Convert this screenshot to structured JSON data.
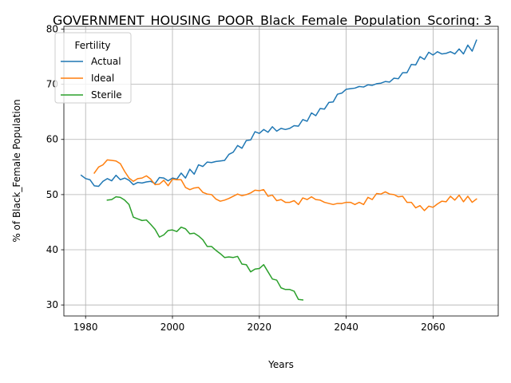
{
  "chart_data": {
    "type": "line",
    "title": "GOVERNMENT_HOUSING_POOR_Black_Female_Population_Scoring: 3",
    "xlabel": "Years",
    "ylabel": "% of Black_Female Population",
    "xlim": [
      1975,
      2075
    ],
    "ylim": [
      28,
      80.5
    ],
    "xticks": [
      1980,
      2000,
      2020,
      2040,
      2060
    ],
    "yticks": [
      30,
      40,
      50,
      60,
      70,
      80
    ],
    "grid": true,
    "legend": {
      "title": "Fertility",
      "placement": "top-left"
    },
    "series": [
      {
        "name": "Actual",
        "color": "#1f77b4",
        "x": [
          1979,
          1980,
          1981,
          1982,
          1983,
          1984,
          1985,
          1986,
          1987,
          1988,
          1989,
          1990,
          1991,
          1992,
          1993,
          1994,
          1995,
          1996,
          1997,
          1998,
          1999,
          2000,
          2001,
          2002,
          2003,
          2004,
          2005,
          2006,
          2007,
          2008,
          2009,
          2010,
          2011,
          2012,
          2013,
          2014,
          2015,
          2016,
          2017,
          2018,
          2019,
          2020,
          2021,
          2022,
          2023,
          2024,
          2025,
          2026,
          2027,
          2028,
          2029,
          2030,
          2031,
          2032,
          2033,
          2034,
          2035,
          2036,
          2037,
          2038,
          2039,
          2040,
          2041,
          2042,
          2043,
          2044,
          2045,
          2046,
          2047,
          2048,
          2049,
          2050,
          2051,
          2052,
          2053,
          2054,
          2055,
          2056,
          2057,
          2058,
          2059,
          2060,
          2061,
          2062,
          2063,
          2064,
          2065,
          2066,
          2067,
          2068,
          2069,
          2070
        ],
        "values": [
          53.5,
          52.9,
          52.7,
          51.6,
          51.5,
          52.4,
          52.9,
          52.5,
          53.5,
          52.7,
          53.0,
          52.6,
          51.8,
          52.2,
          52.1,
          52.3,
          52.4,
          52.0,
          53.1,
          53.0,
          52.5,
          53.0,
          52.8,
          53.9,
          53.0,
          54.6,
          53.7,
          55.4,
          55.1,
          55.9,
          55.8,
          56.0,
          56.1,
          56.2,
          57.3,
          57.7,
          58.9,
          58.4,
          59.8,
          59.9,
          61.4,
          61.1,
          61.8,
          61.3,
          62.3,
          61.5,
          62.0,
          61.8,
          62.0,
          62.5,
          62.4,
          63.6,
          63.3,
          64.8,
          64.3,
          65.6,
          65.5,
          66.7,
          66.8,
          68.2,
          68.4,
          69.1,
          69.2,
          69.3,
          69.6,
          69.5,
          69.9,
          69.8,
          70.1,
          70.2,
          70.5,
          70.4,
          71.1,
          71.0,
          72.1,
          72.1,
          73.6,
          73.5,
          75.0,
          74.5,
          75.8,
          75.3,
          75.9,
          75.5,
          75.6,
          75.9,
          75.5,
          76.4,
          75.5,
          77.1,
          76.0,
          78.0
        ]
      },
      {
        "name": "Ideal",
        "color": "#ff7f0e",
        "x": [
          1982,
          1983,
          1984,
          1985,
          1986,
          1987,
          1988,
          1989,
          1990,
          1991,
          1992,
          1993,
          1994,
          1995,
          1996,
          1997,
          1998,
          1999,
          2000,
          2001,
          2002,
          2003,
          2004,
          2005,
          2006,
          2007,
          2008,
          2009,
          2010,
          2011,
          2012,
          2013,
          2014,
          2015,
          2016,
          2017,
          2018,
          2019,
          2020,
          2021,
          2022,
          2023,
          2024,
          2025,
          2026,
          2027,
          2028,
          2029,
          2030,
          2031,
          2032,
          2033,
          2034,
          2035,
          2036,
          2037,
          2038,
          2039,
          2040,
          2041,
          2042,
          2043,
          2044,
          2045,
          2046,
          2047,
          2048,
          2049,
          2050,
          2051,
          2052,
          2053,
          2054,
          2055,
          2056,
          2057,
          2058,
          2059,
          2060,
          2061,
          2062,
          2063,
          2064,
          2065,
          2066,
          2067,
          2068,
          2069,
          2070
        ],
        "values": [
          53.9,
          55.0,
          55.4,
          56.3,
          56.2,
          56.1,
          55.6,
          54.2,
          53.0,
          52.4,
          52.9,
          53.0,
          53.4,
          52.8,
          51.8,
          51.9,
          52.6,
          51.6,
          52.8,
          52.7,
          52.7,
          51.3,
          50.9,
          51.2,
          51.3,
          50.4,
          50.1,
          50.0,
          49.2,
          48.8,
          49.0,
          49.3,
          49.7,
          50.1,
          49.8,
          50.0,
          50.3,
          50.8,
          50.7,
          50.9,
          49.7,
          49.9,
          48.9,
          49.1,
          48.6,
          48.6,
          48.9,
          48.2,
          49.4,
          49.1,
          49.6,
          49.1,
          49.0,
          48.6,
          48.4,
          48.2,
          48.4,
          48.4,
          48.6,
          48.6,
          48.2,
          48.6,
          48.2,
          49.5,
          49.1,
          50.2,
          50.1,
          50.5,
          50.1,
          50.0,
          49.6,
          49.7,
          48.6,
          48.6,
          47.6,
          48.0,
          47.1,
          47.9,
          47.7,
          48.3,
          48.8,
          48.7,
          49.7,
          49.0,
          49.9,
          48.7,
          49.7,
          48.6,
          49.2
        ]
      },
      {
        "name": "Sterile",
        "color": "#2ca02c",
        "x": [
          1985,
          1986,
          1987,
          1988,
          1989,
          1990,
          1991,
          1992,
          1993,
          1994,
          1995,
          1996,
          1997,
          1998,
          1999,
          2000,
          2001,
          2002,
          2003,
          2004,
          2005,
          2006,
          2007,
          2008,
          2009,
          2010,
          2011,
          2012,
          2013,
          2014,
          2015,
          2016,
          2017,
          2018,
          2019,
          2020,
          2021,
          2022,
          2023,
          2024,
          2025,
          2026,
          2027,
          2028,
          2029,
          2030
        ],
        "values": [
          49.0,
          49.1,
          49.6,
          49.5,
          49.0,
          48.2,
          45.9,
          45.6,
          45.3,
          45.4,
          44.6,
          43.7,
          42.3,
          42.7,
          43.5,
          43.6,
          43.3,
          44.1,
          43.8,
          42.9,
          43.0,
          42.5,
          41.8,
          40.6,
          40.6,
          39.9,
          39.3,
          38.6,
          38.7,
          38.6,
          38.8,
          37.4,
          37.3,
          36.0,
          36.5,
          36.6,
          37.3,
          36.0,
          34.7,
          34.5,
          33.1,
          32.8,
          32.8,
          32.5,
          31.0,
          30.9
        ]
      }
    ]
  }
}
